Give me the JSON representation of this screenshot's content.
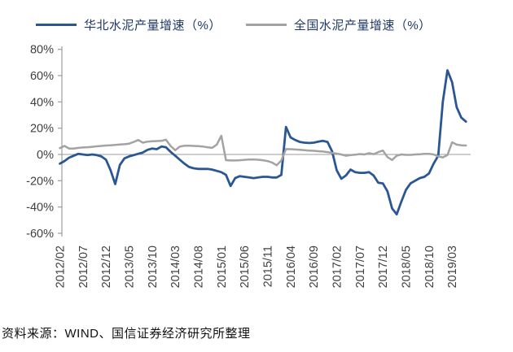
{
  "footer": {
    "source_text": "资料来源：WIND、国信证券经济研究所整理"
  },
  "chart_data": {
    "type": "line",
    "title": "",
    "xlabel": "",
    "ylabel": "",
    "ylim": [
      -60,
      80
    ],
    "grid": false,
    "legend_position": "top",
    "y_tick_labels": [
      "80%",
      "60%",
      "40%",
      "20%",
      "0%",
      "-20%",
      "-40%",
      "-60%"
    ],
    "y_tick_values": [
      80,
      60,
      40,
      20,
      0,
      -20,
      -40,
      -60
    ],
    "x_tick_labels": [
      "2012/02",
      "2012/07",
      "2012/12",
      "2013/05",
      "2013/10",
      "2014/03",
      "2014/08",
      "2015/01",
      "2015/06",
      "2015/11",
      "2016/04",
      "2016/09",
      "2017/02",
      "2017/07",
      "2017/12",
      "2018/05",
      "2018/10",
      "2019/03"
    ],
    "categories": [
      "2012/02",
      "2012/03",
      "2012/04",
      "2012/05",
      "2012/06",
      "2012/07",
      "2012/08",
      "2012/09",
      "2012/10",
      "2012/11",
      "2012/12",
      "2013/01",
      "2013/02",
      "2013/03",
      "2013/04",
      "2013/05",
      "2013/06",
      "2013/07",
      "2013/08",
      "2013/09",
      "2013/10",
      "2013/11",
      "2013/12",
      "2014/01",
      "2014/02",
      "2014/03",
      "2014/04",
      "2014/05",
      "2014/06",
      "2014/07",
      "2014/08",
      "2014/09",
      "2014/10",
      "2014/11",
      "2014/12",
      "2015/01",
      "2015/02",
      "2015/03",
      "2015/04",
      "2015/05",
      "2015/06",
      "2015/07",
      "2015/08",
      "2015/09",
      "2015/10",
      "2015/11",
      "2015/12",
      "2016/01",
      "2016/02",
      "2016/03",
      "2016/04",
      "2016/05",
      "2016/06",
      "2016/07",
      "2016/08",
      "2016/09",
      "2016/10",
      "2016/11",
      "2016/12",
      "2017/01",
      "2017/02",
      "2017/03",
      "2017/04",
      "2017/05",
      "2017/06",
      "2017/07",
      "2017/08",
      "2017/09",
      "2017/10",
      "2017/11",
      "2017/12",
      "2018/01",
      "2018/02",
      "2018/03",
      "2018/04",
      "2018/05",
      "2018/06",
      "2018/07",
      "2018/08",
      "2018/09",
      "2018/10",
      "2018/11",
      "2018/12",
      "2019/01",
      "2019/02",
      "2019/03",
      "2019/04",
      "2019/05",
      "2019/06"
    ],
    "series": [
      {
        "name": "华北水泥产量增速（%）",
        "color": "#2A5794",
        "width": 2.8,
        "values": [
          -7,
          -5,
          -2.5,
          -1,
          0.5,
          0,
          -0.5,
          0,
          -0.5,
          -1.5,
          -4,
          -12,
          -22.5,
          -8,
          -3,
          -1.5,
          -0.5,
          0.5,
          1.5,
          3.5,
          4.5,
          4,
          6,
          5.5,
          2,
          -1,
          -4,
          -7,
          -9.5,
          -10.5,
          -11,
          -11,
          -11,
          -11.5,
          -12.5,
          -13.5,
          -15.5,
          -24,
          -18,
          -16.5,
          -17,
          -17.5,
          -18,
          -17.5,
          -17,
          -17,
          -17.5,
          -17.5,
          -15.5,
          21,
          13,
          11,
          9.5,
          9,
          8.7,
          9,
          9.7,
          10.3,
          9.5,
          2.5,
          -12,
          -18.5,
          -16,
          -11.5,
          -13.5,
          -14,
          -14,
          -13.5,
          -16,
          -21.5,
          -22,
          -28,
          -41,
          -45.5,
          -36,
          -27,
          -22,
          -20,
          -18,
          -17,
          -14.5,
          -7,
          -1,
          40,
          64,
          55,
          36,
          28,
          25
        ]
      },
      {
        "name": "全国水泥产量增速（%）",
        "color": "#A3A3A3",
        "width": 2.5,
        "values": [
          4.8,
          6.5,
          4.5,
          4.5,
          5,
          5.3,
          5.5,
          5.8,
          6.2,
          6.5,
          6.8,
          7,
          7.3,
          7.6,
          7.8,
          8.2,
          9.5,
          11,
          9,
          9.8,
          10,
          10.2,
          10.3,
          11.2,
          6.5,
          3.2,
          6,
          6.6,
          6.6,
          6.5,
          6.3,
          6,
          5.5,
          5,
          7.5,
          14.2,
          -4.3,
          -4.6,
          -4.6,
          -4.4,
          -4.1,
          -3.9,
          -3.8,
          -4,
          -4.4,
          -5,
          -6.2,
          -8.2,
          -4.5,
          4.1,
          4,
          3.8,
          3.6,
          3.2,
          3,
          2.8,
          2.5,
          2.2,
          1.8,
          1.2,
          0.6,
          0,
          -1,
          -0.5,
          -0.2,
          0.3,
          0,
          1,
          0.2,
          1.8,
          3,
          -2,
          -4.2,
          -1,
          0,
          -0.3,
          -0.3,
          0,
          0.2,
          0.5,
          0.5,
          0,
          -1.5,
          -2.2,
          -0.5,
          9.3,
          7.5,
          7,
          6.8
        ]
      }
    ]
  }
}
